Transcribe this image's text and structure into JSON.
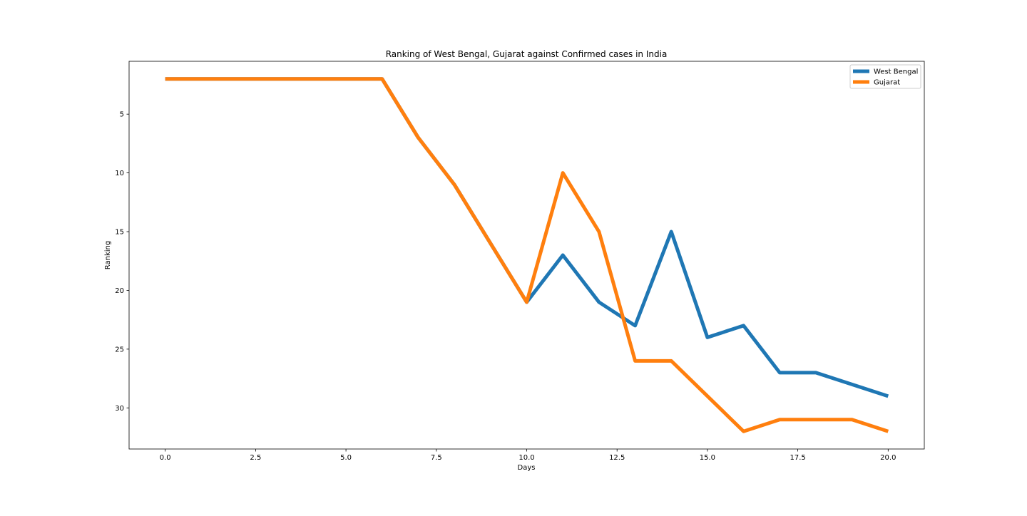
{
  "chart_data": {
    "type": "line",
    "title": "Ranking of West Bengal, Gujarat against Confirmed cases in India",
    "xlabel": "Days",
    "ylabel": "Ranking",
    "xlim": [
      -1,
      21
    ],
    "ylim": [
      33.5,
      0.5
    ],
    "y_inverted": true,
    "grid": false,
    "legend_position": "top-right",
    "x_ticks": [
      0.0,
      2.5,
      5.0,
      7.5,
      10.0,
      12.5,
      15.0,
      17.5,
      20.0
    ],
    "x_tick_labels": [
      "0.0",
      "2.5",
      "5.0",
      "7.5",
      "10.0",
      "12.5",
      "15.0",
      "17.5",
      "20.0"
    ],
    "y_ticks": [
      5,
      10,
      15,
      20,
      25,
      30
    ],
    "y_tick_labels": [
      "5",
      "10",
      "15",
      "20",
      "25",
      "30"
    ],
    "x": [
      0,
      1,
      2,
      3,
      4,
      5,
      6,
      7,
      8,
      9,
      10,
      11,
      12,
      13,
      14,
      15,
      16,
      17,
      18,
      19,
      20
    ],
    "series": [
      {
        "name": "West Bengal",
        "color": "#1f77b4",
        "values": [
          2,
          2,
          2,
          2,
          2,
          2,
          2,
          7,
          11,
          16,
          21,
          17,
          21,
          23,
          15,
          24,
          23,
          27,
          27,
          28,
          29
        ]
      },
      {
        "name": "Gujarat",
        "color": "#ff7f0e",
        "values": [
          2,
          2,
          2,
          2,
          2,
          2,
          2,
          7,
          11,
          16,
          21,
          10,
          15,
          26,
          26,
          29,
          32,
          31,
          31,
          31,
          32
        ]
      }
    ]
  }
}
